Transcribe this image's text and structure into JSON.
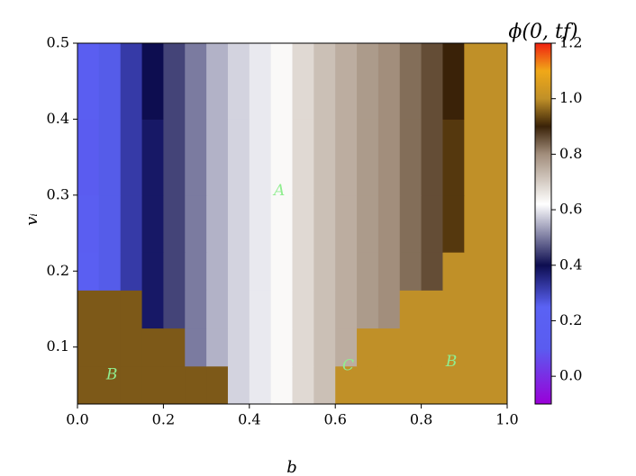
{
  "chart_data": {
    "type": "heatmap",
    "x_label": "b",
    "y_label": "vᵢ",
    "colorbar_label": "ϕ(0, tf)",
    "xedges": [
      0,
      0.05,
      0.1,
      0.15,
      0.2,
      0.25,
      0.3,
      0.35,
      0.4,
      0.45,
      0.5,
      0.55,
      0.6,
      0.65,
      0.7,
      0.75,
      0.8,
      0.85,
      0.9,
      0.95,
      1.0
    ],
    "yedges": [
      0.025,
      0.075,
      0.125,
      0.175,
      0.225,
      0.3,
      0.4,
      0.5
    ],
    "z": [
      [
        0.95,
        0.95,
        0.95,
        0.95,
        0.95,
        0.95,
        0.95,
        0.58,
        0.6,
        0.63,
        0.68,
        0.72,
        1.0,
        1.0,
        1.0,
        1.0,
        1.0,
        1.0,
        1.0,
        1.0
      ],
      [
        0.95,
        0.95,
        0.95,
        0.95,
        0.95,
        0.5,
        0.55,
        0.58,
        0.6,
        0.63,
        0.68,
        0.72,
        0.75,
        1.0,
        1.0,
        1.0,
        1.0,
        1.0,
        1.0,
        1.0
      ],
      [
        0.95,
        0.95,
        0.95,
        0.38,
        0.45,
        0.5,
        0.55,
        0.58,
        0.6,
        0.63,
        0.68,
        0.72,
        0.75,
        0.78,
        0.8,
        1.0,
        1.0,
        1.0,
        1.0,
        1.0
      ],
      [
        0.18,
        0.26,
        0.32,
        0.38,
        0.45,
        0.5,
        0.55,
        0.58,
        0.6,
        0.63,
        0.68,
        0.72,
        0.75,
        0.78,
        0.8,
        0.83,
        0.86,
        1.0,
        1.0,
        1.0
      ],
      [
        0.15,
        0.26,
        0.32,
        0.38,
        0.45,
        0.5,
        0.55,
        0.58,
        0.6,
        0.63,
        0.68,
        0.72,
        0.75,
        0.78,
        0.8,
        0.83,
        0.86,
        0.92,
        1.0,
        1.0
      ],
      [
        0.1,
        0.26,
        0.32,
        0.38,
        0.45,
        0.5,
        0.55,
        0.58,
        0.6,
        0.63,
        0.68,
        0.72,
        0.75,
        0.78,
        0.8,
        0.83,
        0.86,
        0.92,
        1.0,
        1.0
      ],
      [
        0.15,
        0.26,
        0.32,
        0.4,
        0.45,
        0.5,
        0.55,
        0.58,
        0.6,
        0.63,
        0.68,
        0.72,
        0.75,
        0.78,
        0.8,
        0.83,
        0.86,
        0.9,
        1.0,
        1.0
      ]
    ],
    "xlim": [
      0,
      1.0
    ],
    "ylim": [
      0.025,
      0.5
    ],
    "xticks": [
      {
        "value": 0,
        "label": "0.0"
      },
      0.2,
      0.4,
      0.6,
      0.8,
      {
        "value": 1,
        "label": "1.0"
      }
    ],
    "yticks": [
      0.1,
      0.2,
      0.3,
      0.4,
      0.5
    ],
    "clim": [
      -0.1,
      1.2
    ],
    "cticks": [
      {
        "value": 0,
        "label": "0.0"
      },
      0.2,
      0.4,
      0.6,
      0.8,
      {
        "value": 1,
        "label": "1.0"
      },
      1.2
    ],
    "colormap": [
      {
        "value": -0.1,
        "color": "#9a00d8"
      },
      {
        "value": 0.1,
        "color": "#5a5cf0"
      },
      {
        "value": 0.25,
        "color": "#5a62f4"
      },
      {
        "value": 0.4,
        "color": "#0d0d50"
      },
      {
        "value": 0.62,
        "color": "#ffffff"
      },
      {
        "value": 0.8,
        "color": "#a28e7c"
      },
      {
        "value": 0.9,
        "color": "#3a2208"
      },
      {
        "value": 1.0,
        "color": "#c09028"
      },
      {
        "value": 1.1,
        "color": "#f0a818"
      },
      {
        "value": 1.2,
        "color": "#f02010"
      }
    ],
    "annotation_color": "#90ee90",
    "annotations": [
      {
        "text": "A",
        "x": 0.47,
        "y": 0.305
      },
      {
        "text": "B",
        "x": 0.08,
        "y": 0.063
      },
      {
        "text": "C",
        "x": 0.63,
        "y": 0.075
      },
      {
        "text": "B",
        "x": 0.87,
        "y": 0.08
      }
    ]
  }
}
